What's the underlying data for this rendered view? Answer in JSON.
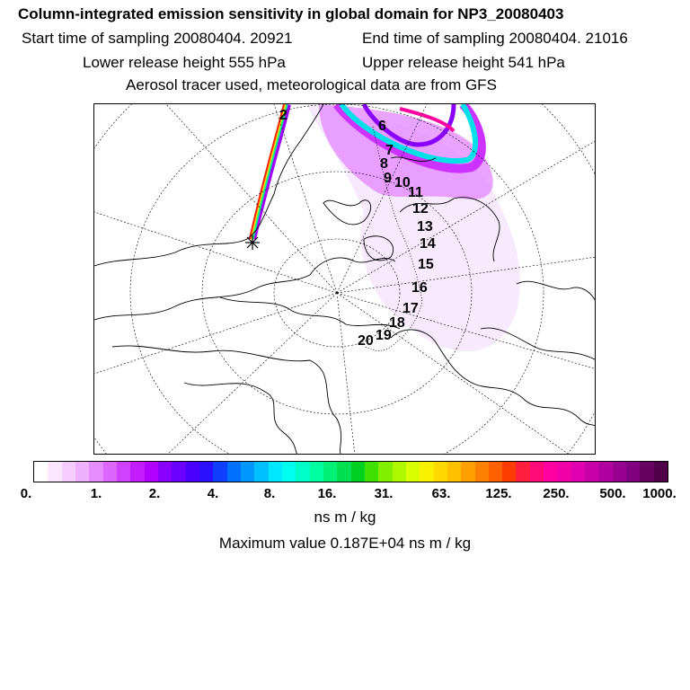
{
  "header": {
    "title": "Column-integrated emission sensitivity in global domain for NP3_20080403",
    "start_time": "Start time of sampling 20080404. 20921",
    "end_time": "End time of sampling 20080404. 21016",
    "lower_release": "Lower release height  555 hPa",
    "upper_release": "Upper release height  541 hPa",
    "tracer_note": "Aerosol tracer used, meteorological data are from GFS"
  },
  "map": {
    "day_markers": [
      "2",
      "6",
      "7",
      "8",
      "9",
      "10",
      "11",
      "12",
      "13",
      "14",
      "15",
      "16",
      "17",
      "18",
      "19",
      "20"
    ]
  },
  "colorbar": {
    "labels": [
      "0.",
      "1.",
      "2.",
      "4.",
      "8.",
      "16.",
      "31.",
      "63.",
      "125.",
      "250.",
      "500.",
      "1000."
    ],
    "colors": [
      "#ffffff",
      "#fbe6ff",
      "#f5ccff",
      "#eeb0ff",
      "#e58cff",
      "#dd66ff",
      "#d040ff",
      "#c21cff",
      "#b000ff",
      "#8a00ff",
      "#6a00ff",
      "#4a00ff",
      "#2a10ff",
      "#1040ff",
      "#0070ff",
      "#0098ff",
      "#00c0ff",
      "#00e8ff",
      "#00ffee",
      "#00ffc8",
      "#00ffa0",
      "#00f078",
      "#00e050",
      "#00d020",
      "#40e000",
      "#80f000",
      "#b0f800",
      "#d8fc00",
      "#f8f000",
      "#ffd800",
      "#ffc000",
      "#ffa000",
      "#ff8000",
      "#ff6000",
      "#ff3c00",
      "#ff1e3c",
      "#ff0a78",
      "#ff00a0",
      "#f000a8",
      "#e000b0",
      "#c800a8",
      "#b000a0",
      "#980090",
      "#800080",
      "#680060",
      "#500048"
    ],
    "units": "ns m / kg",
    "max_value": "Maximum value  0.187E+04 ns m / kg"
  }
}
